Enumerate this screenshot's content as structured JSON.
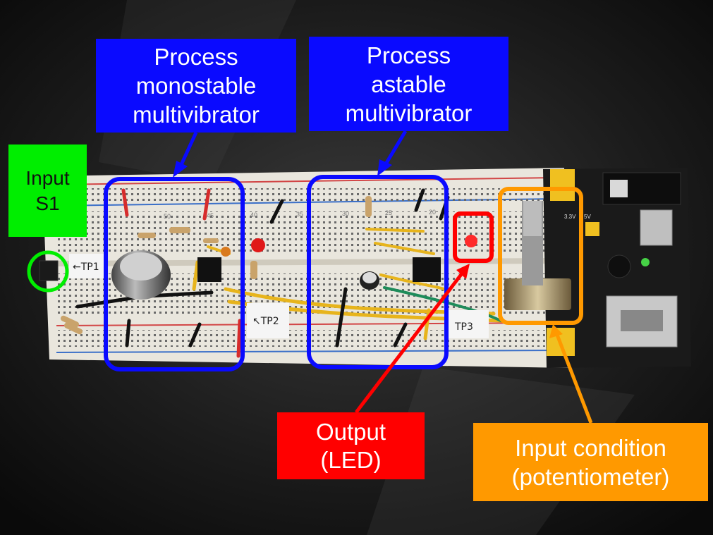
{
  "labels": {
    "monostable": {
      "line1": "Process",
      "line2": "monostable",
      "line3": "multivibrator"
    },
    "astable": {
      "line1": "Process",
      "line2": "astable",
      "line3": "multivibrator"
    },
    "input": {
      "line1": "Input",
      "line2": "S1"
    },
    "output": {
      "line1": "Output",
      "line2": "(LED)"
    },
    "input_condition": {
      "line1": "Input condition",
      "line2": "(potentiometer)"
    }
  },
  "board": {
    "tp1": "←TP1",
    "tp2": "↖TP2",
    "tp3": "TP3",
    "row_numbers": [
      "50",
      "45",
      "40",
      "35",
      "30",
      "25",
      "20"
    ],
    "rail_voltage_labels": [
      "3.3V",
      "5V"
    ]
  },
  "colors": {
    "blue_box": "#0a0aff",
    "green_box": "#00ee00",
    "red_box": "#ff0000",
    "orange_box": "#ff9900",
    "breadboard": "#e9e6dd",
    "background": "#111111"
  }
}
